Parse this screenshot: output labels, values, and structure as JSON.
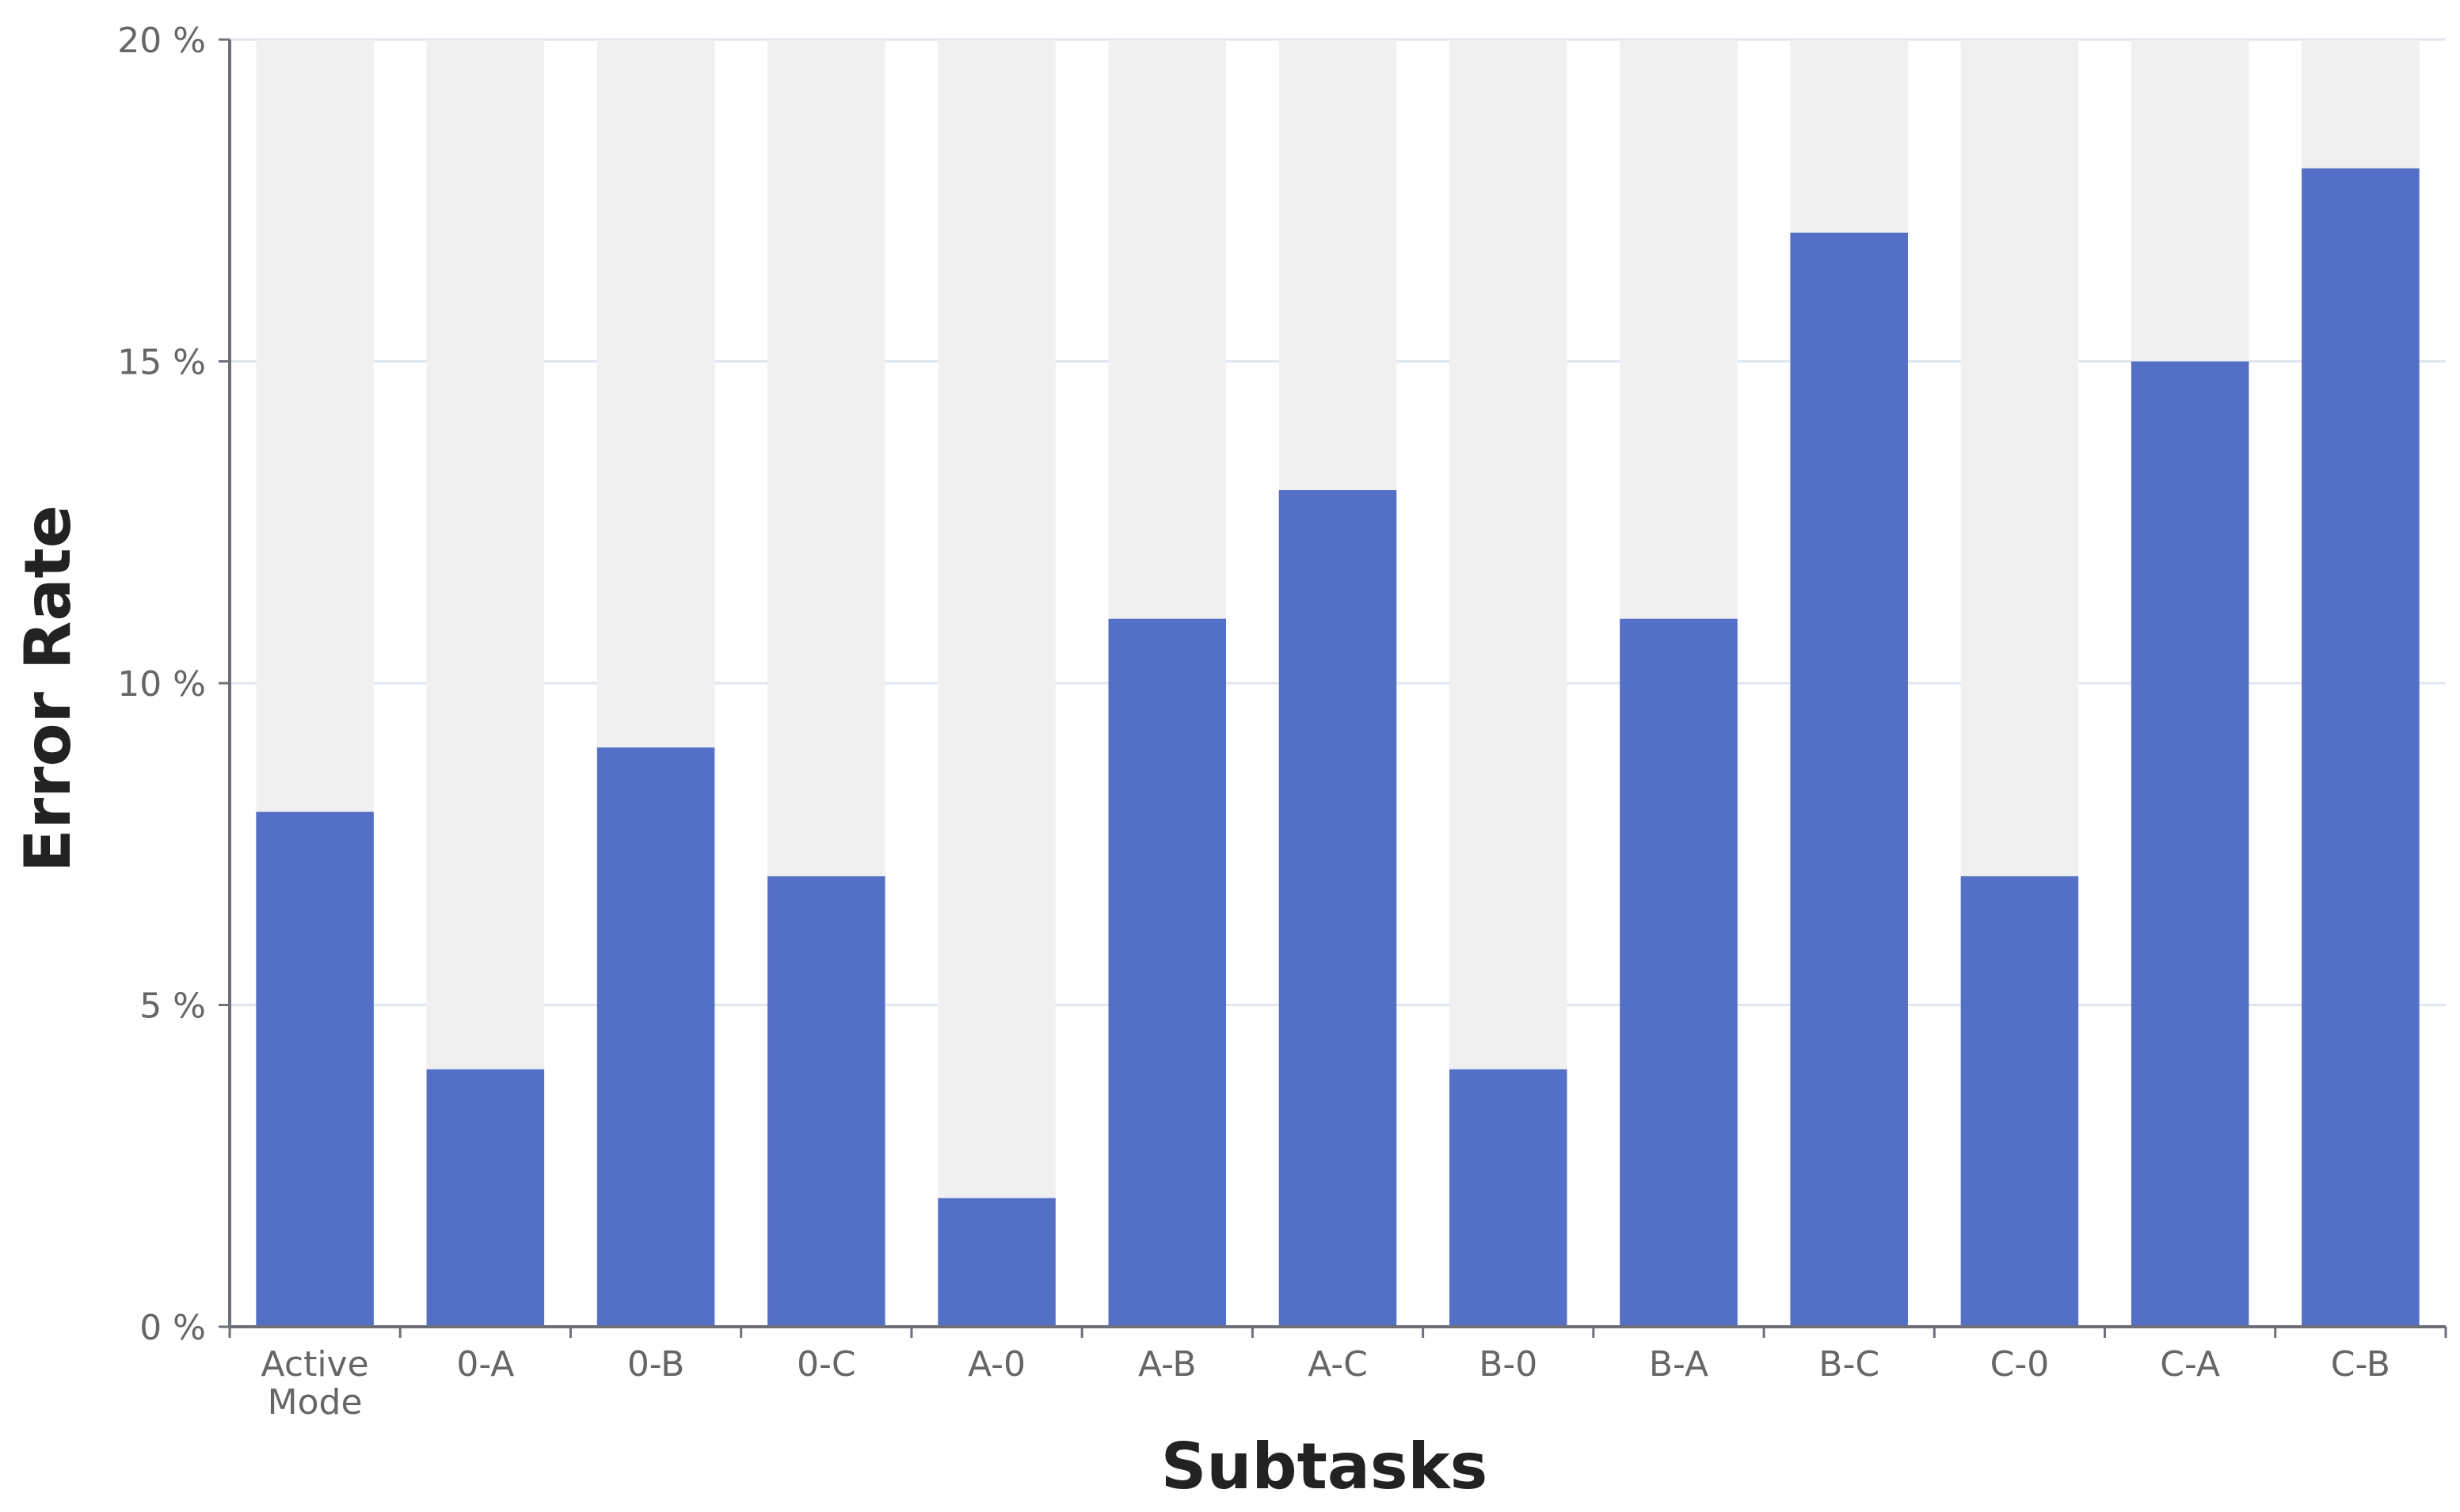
{
  "chart_data": {
    "type": "bar",
    "title": "",
    "xlabel": "Subtasks",
    "ylabel": "Error Rate",
    "categories": [
      [
        "Active",
        "Mode"
      ],
      [
        "0-A"
      ],
      [
        "0-B"
      ],
      [
        "0-C"
      ],
      [
        "A-0"
      ],
      [
        "A-B"
      ],
      [
        "A-C"
      ],
      [
        "B-0"
      ],
      [
        "B-A"
      ],
      [
        "B-C"
      ],
      [
        "C-0"
      ],
      [
        "C-A"
      ],
      [
        "C-B"
      ]
    ],
    "values": [
      8,
      4,
      9,
      7,
      2,
      11,
      13,
      4,
      11,
      17,
      7,
      15,
      18
    ],
    "ylim": [
      0,
      20
    ],
    "yticks": [
      0,
      5,
      10,
      15,
      20
    ],
    "ytick_labels": [
      "0 %",
      "5 %",
      "10 %",
      "15 %",
      "20 %"
    ],
    "unit": "%",
    "grid": true,
    "legend": "none",
    "colors": {
      "bar": "#5470c6",
      "bar_background": "#f0f0f0",
      "gridline": "#e0e6f1",
      "axis": "#6e7079"
    }
  }
}
